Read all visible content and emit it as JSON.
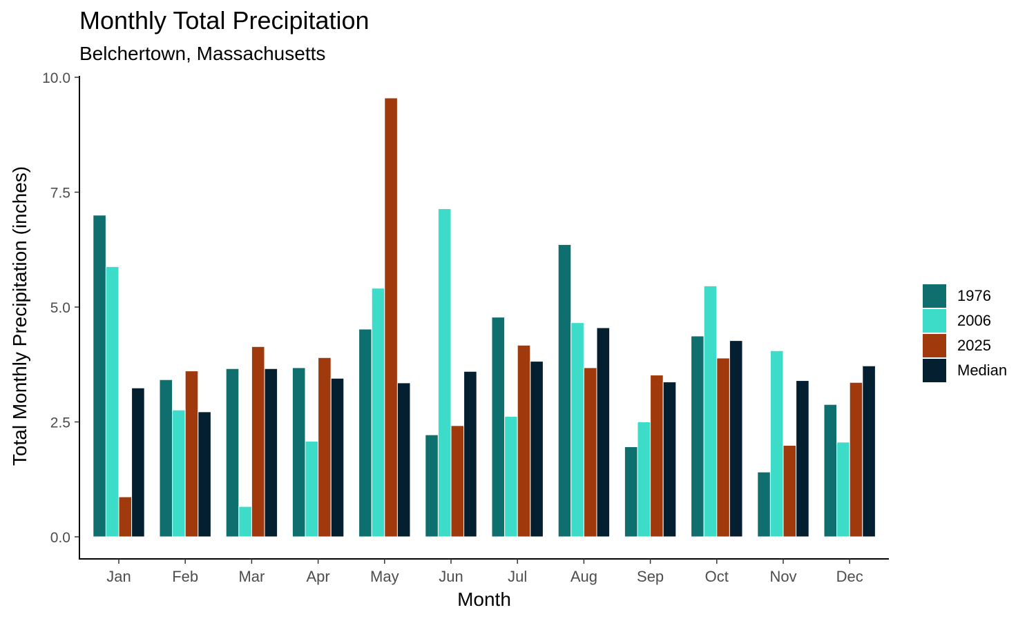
{
  "chart_data": {
    "type": "bar",
    "title": "Monthly Total Precipitation",
    "subtitle": "Belchertown, Massachusetts",
    "xlabel": "Month",
    "ylabel": "Total Monthly Precipitation (inches)",
    "ylim": [
      0,
      10
    ],
    "yticks": [
      "0.0",
      "2.5",
      "5.0",
      "7.5",
      "10.0"
    ],
    "ytick_values": [
      0,
      2.5,
      5,
      7.5,
      10
    ],
    "grid": false,
    "legend_position": "right",
    "categories": [
      "Jan",
      "Feb",
      "Mar",
      "Apr",
      "May",
      "Jun",
      "Jul",
      "Aug",
      "Sep",
      "Oct",
      "Nov",
      "Dec"
    ],
    "series": [
      {
        "name": "1976",
        "color": "#0f6e6e",
        "values": [
          7.0,
          3.42,
          3.66,
          3.68,
          4.52,
          2.22,
          4.78,
          6.36,
          1.96,
          4.37,
          1.41,
          2.88
        ]
      },
      {
        "name": "2006",
        "color": "#3ddcc8",
        "values": [
          5.88,
          2.76,
          0.66,
          2.08,
          5.41,
          7.14,
          2.62,
          4.66,
          2.5,
          5.46,
          4.05,
          2.06
        ]
      },
      {
        "name": "2025",
        "color": "#a0390c",
        "values": [
          0.87,
          3.61,
          4.14,
          3.9,
          9.55,
          2.42,
          4.17,
          3.68,
          3.52,
          3.89,
          1.99,
          3.36
        ]
      },
      {
        "name": "Median",
        "color": "#031f30",
        "values": [
          3.24,
          2.72,
          3.66,
          3.45,
          3.35,
          3.6,
          3.82,
          4.55,
          3.37,
          4.27,
          3.4,
          3.72
        ]
      }
    ]
  }
}
